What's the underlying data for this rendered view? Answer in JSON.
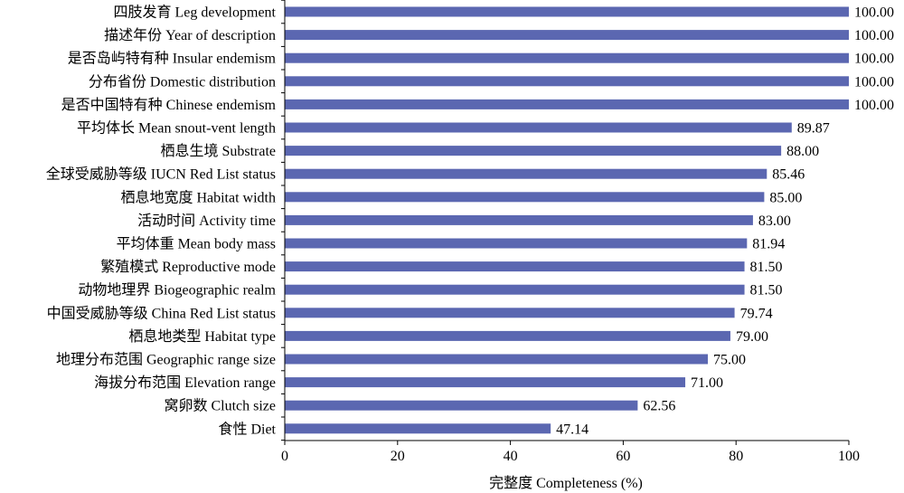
{
  "chart_data": {
    "type": "bar",
    "orientation": "horizontal",
    "categories": [
      "四肢发育 Leg development",
      "描述年份 Year of description",
      "是否岛屿特有种 Insular endemism",
      "分布省份 Domestic distribution",
      "是否中国特有种 Chinese endemism",
      "平均体长 Mean snout-vent length",
      "栖息生境 Substrate",
      "全球受威胁等级 IUCN Red List status",
      "栖息地宽度 Habitat width",
      "活动时间 Activity time",
      "平均体重 Mean body mass",
      "繁殖模式 Reproductive mode",
      "动物地理界 Biogeographic realm",
      "中国受威胁等级 China Red List status",
      "栖息地类型 Habitat type",
      "地理分布范围 Geographic range size",
      "海拔分布范围 Elevation range",
      "窝卵数 Clutch size",
      "食性 Diet"
    ],
    "values": [
      100.0,
      100.0,
      100.0,
      100.0,
      100.0,
      89.87,
      88.0,
      85.46,
      85.0,
      83.0,
      81.94,
      81.5,
      81.5,
      79.74,
      79.0,
      75.0,
      71.0,
      62.56,
      47.14
    ],
    "value_labels": [
      "100.00",
      "100.00",
      "100.00",
      "100.00",
      "100.00",
      "89.87",
      "88.00",
      "85.46",
      "85.00",
      "83.00",
      "81.94",
      "81.50",
      "81.50",
      "79.74",
      "79.00",
      "75.00",
      "71.00",
      "62.56",
      "47.14"
    ],
    "xlabel": "完整度 Completeness (%)",
    "ylabel": "",
    "xlim": [
      0,
      100
    ],
    "xticks": [
      "0",
      "20",
      "40",
      "60",
      "80",
      "100"
    ],
    "grid": false,
    "bar_color": "#5b67b1"
  }
}
